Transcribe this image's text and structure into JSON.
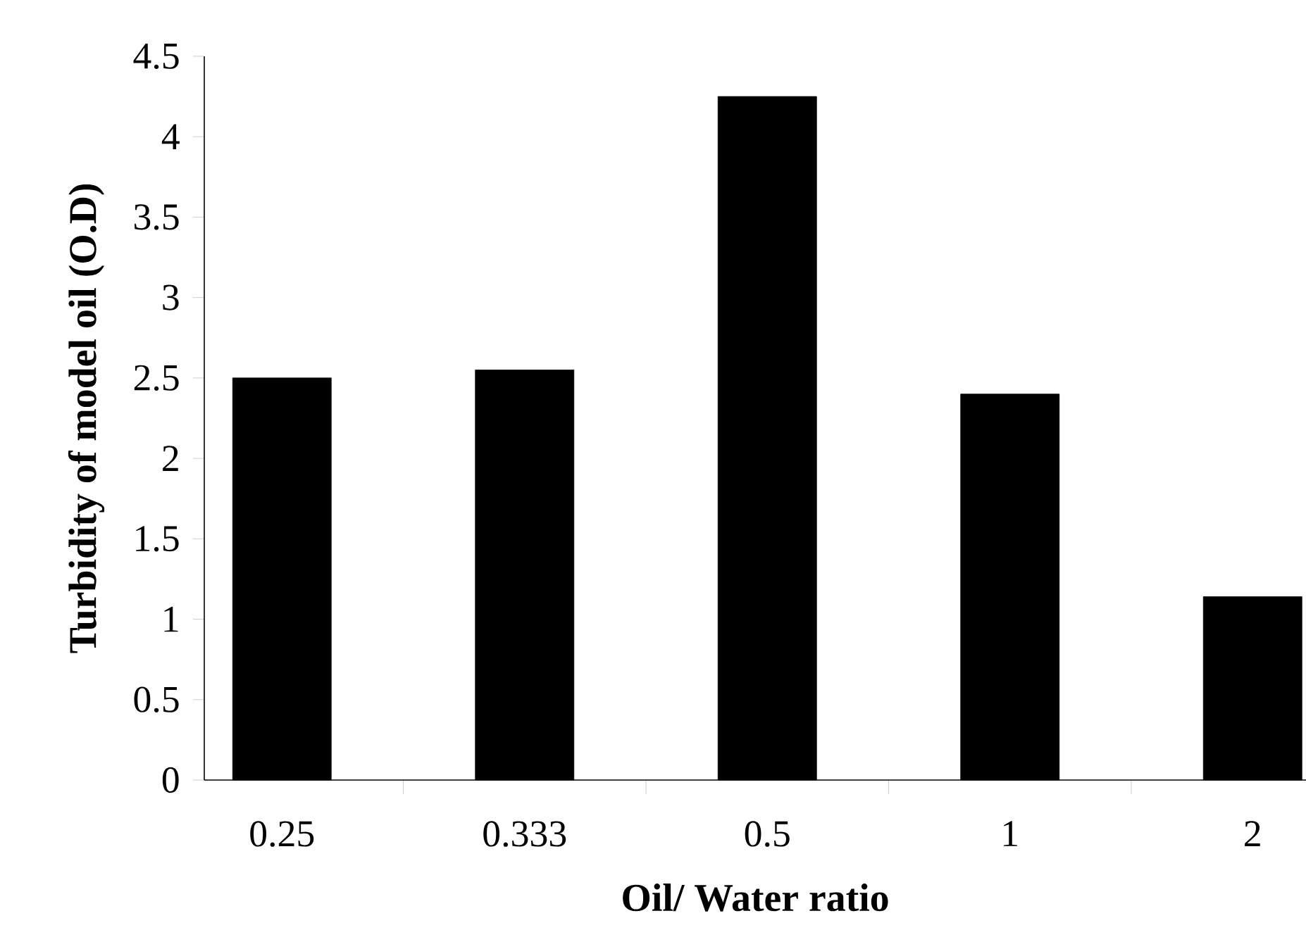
{
  "chart_data": {
    "type": "bar",
    "xlabel": "Oil/ Water ratio",
    "ylabel": "Turbidity of model oil (O.D)",
    "categories": [
      "0.25",
      "0.333",
      "0.5",
      "1",
      "2"
    ],
    "values": [
      2.5,
      2.55,
      4.25,
      2.4,
      1.14
    ],
    "color": "#000000",
    "ylim": [
      0,
      4.5
    ],
    "yticks": [
      0,
      0.5,
      1,
      1.5,
      2,
      2.5,
      3,
      3.5,
      4,
      4.5
    ],
    "grid": false
  }
}
